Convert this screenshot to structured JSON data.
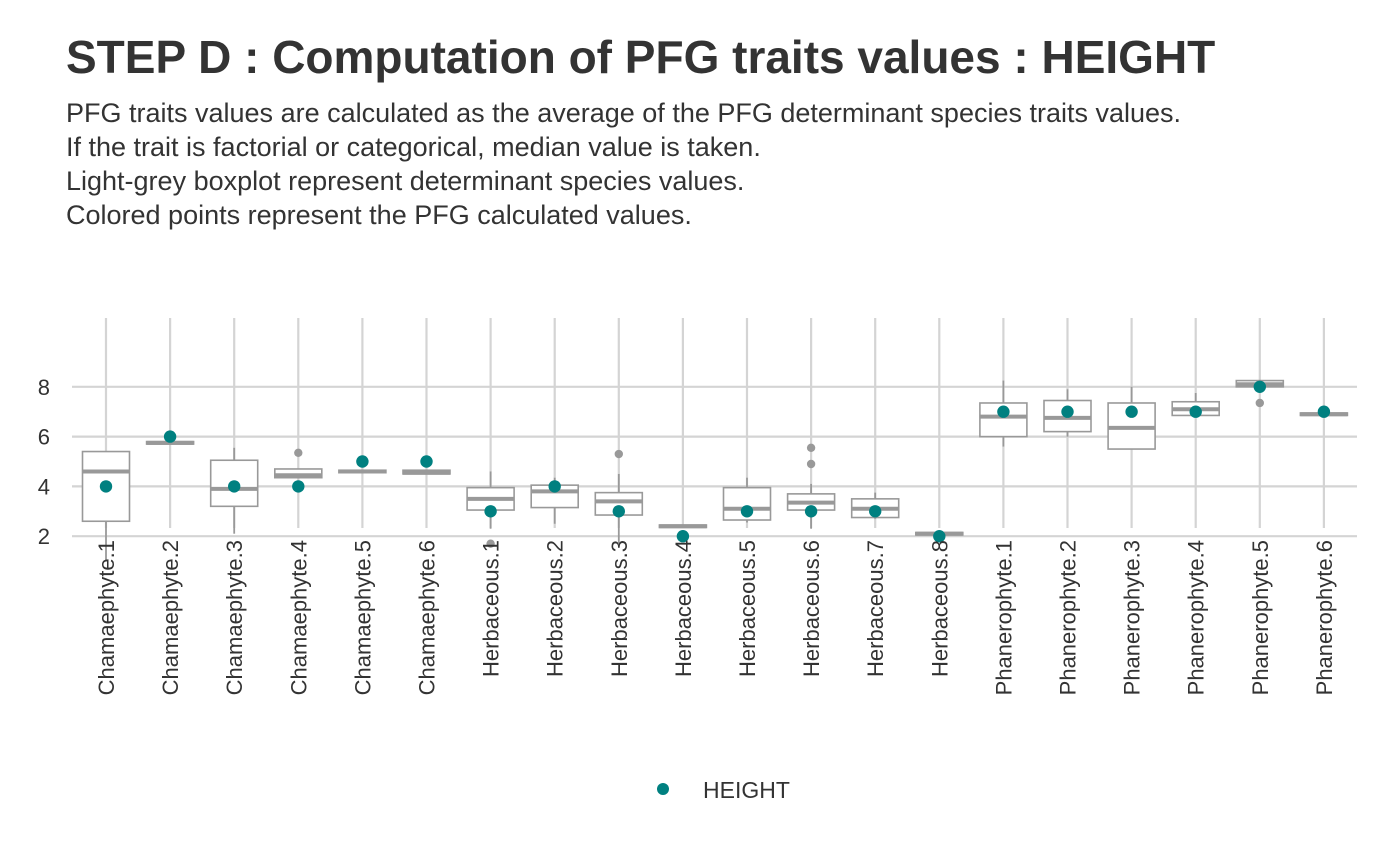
{
  "header": {
    "title": "STEP D : Computation of PFG traits values : HEIGHT",
    "subtitle_lines": [
      "PFG traits values are calculated as the average of the PFG determinant species traits values.",
      "If the trait is factorial or categorical, median value is taken.",
      "Light-grey boxplot represent determinant species values.",
      "Colored points represent the PFG calculated values."
    ]
  },
  "chart_data": {
    "type": "boxplot",
    "title": "STEP D : Computation of PFG traits values : HEIGHT",
    "xlabel": "",
    "ylabel": "",
    "ylim": [
      0.9,
      8.7
    ],
    "yticks": [
      2,
      4,
      6,
      8
    ],
    "grid": true,
    "legend_position": "bottom",
    "point_color": "#008080",
    "box_color": "#999999",
    "categories": [
      "Chamaephyte.1",
      "Chamaephyte.2",
      "Chamaephyte.3",
      "Chamaephyte.4",
      "Chamaephyte.5",
      "Chamaephyte.6",
      "Herbaceous.1",
      "Herbaceous.2",
      "Herbaceous.3",
      "Herbaceous.4",
      "Herbaceous.5",
      "Herbaceous.6",
      "Herbaceous.7",
      "Herbaceous.8",
      "Phanerophyte.1",
      "Phanerophyte.2",
      "Phanerophyte.3",
      "Phanerophyte.4",
      "Phanerophyte.5",
      "Phanerophyte.6"
    ],
    "boxes": [
      {
        "min": 1.0,
        "q1": 2.6,
        "median": 4.6,
        "q3": 5.4,
        "max": 5.4,
        "outliers": []
      },
      {
        "min": 5.7,
        "q1": 5.7,
        "median": 5.75,
        "q3": 5.8,
        "max": 5.8,
        "outliers": []
      },
      {
        "min": 2.1,
        "q1": 3.2,
        "median": 3.9,
        "q3": 5.05,
        "max": 5.55,
        "outliers": []
      },
      {
        "min": 4.35,
        "q1": 4.35,
        "median": 4.45,
        "q3": 4.7,
        "max": 4.7,
        "outliers": [
          5.35
        ]
      },
      {
        "min": 4.55,
        "q1": 4.55,
        "median": 4.6,
        "q3": 4.65,
        "max": 4.65,
        "outliers": []
      },
      {
        "min": 4.5,
        "q1": 4.5,
        "median": 4.55,
        "q3": 4.65,
        "max": 4.65,
        "outliers": []
      },
      {
        "min": 2.3,
        "q1": 3.05,
        "median": 3.5,
        "q3": 3.95,
        "max": 4.6,
        "outliers": [
          1.7
        ]
      },
      {
        "min": 2.5,
        "q1": 3.15,
        "median": 3.8,
        "q3": 4.05,
        "max": 4.35,
        "outliers": []
      },
      {
        "min": 1.7,
        "q1": 2.85,
        "median": 3.4,
        "q3": 3.75,
        "max": 4.5,
        "outliers": [
          5.3
        ]
      },
      {
        "min": 2.35,
        "q1": 2.35,
        "median": 2.4,
        "q3": 2.45,
        "max": 2.45,
        "outliers": []
      },
      {
        "min": 2.55,
        "q1": 2.65,
        "median": 3.1,
        "q3": 3.95,
        "max": 4.35,
        "outliers": []
      },
      {
        "min": 2.3,
        "q1": 3.05,
        "median": 3.35,
        "q3": 3.7,
        "max": 4.1,
        "outliers": [
          4.9,
          5.55
        ]
      },
      {
        "min": 2.7,
        "q1": 2.75,
        "median": 3.1,
        "q3": 3.5,
        "max": 3.75,
        "outliers": []
      },
      {
        "min": 2.05,
        "q1": 2.05,
        "median": 2.1,
        "q3": 2.15,
        "max": 2.15,
        "outliers": []
      },
      {
        "min": 5.6,
        "q1": 6.0,
        "median": 6.8,
        "q3": 7.35,
        "max": 8.25,
        "outliers": []
      },
      {
        "min": 6.0,
        "q1": 6.2,
        "median": 6.75,
        "q3": 7.45,
        "max": 7.9,
        "outliers": []
      },
      {
        "min": 5.5,
        "q1": 5.5,
        "median": 6.35,
        "q3": 7.35,
        "max": 8.0,
        "outliers": []
      },
      {
        "min": 6.85,
        "q1": 6.85,
        "median": 7.1,
        "q3": 7.4,
        "max": 7.75,
        "outliers": []
      },
      {
        "min": 8.0,
        "q1": 8.0,
        "median": 8.1,
        "q3": 8.25,
        "max": 8.25,
        "outliers": [
          7.35
        ]
      },
      {
        "min": 6.85,
        "q1": 6.85,
        "median": 6.9,
        "q3": 6.95,
        "max": 6.95,
        "outliers": []
      }
    ],
    "series": [
      {
        "name": "HEIGHT",
        "values": [
          4,
          6,
          4,
          4,
          5,
          5,
          3,
          4,
          3,
          2,
          3,
          3,
          3,
          2,
          7,
          7,
          7,
          7,
          8,
          7
        ]
      }
    ]
  }
}
